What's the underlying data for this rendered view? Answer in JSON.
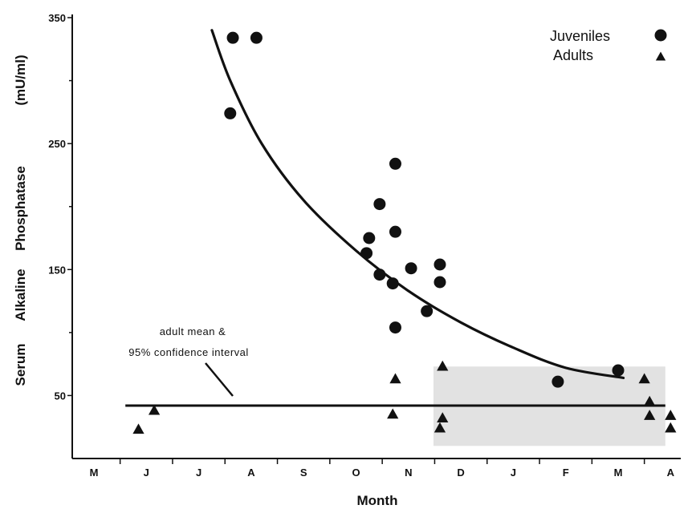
{
  "chart_data": {
    "type": "scatter",
    "xlabel": "Month",
    "ylabel": "Serum Alkaline Phosphatase (mU/ml)",
    "ylabel_parts": [
      "Serum",
      "Alkaline",
      "Phosphatase",
      "(mU/ml)"
    ],
    "ylim": [
      0,
      350
    ],
    "yticks": [
      50,
      150,
      250,
      350
    ],
    "xlim": [
      -0.5,
      11.5
    ],
    "categories": [
      "M",
      "J",
      "J",
      "A",
      "S",
      "O",
      "N",
      "D",
      "J",
      "F",
      "M",
      "A"
    ],
    "legend_position": "top-right",
    "series": [
      {
        "name": "Juveniles",
        "marker": "circle",
        "points": [
          {
            "x": 2.65,
            "y": 334
          },
          {
            "x": 3.1,
            "y": 334
          },
          {
            "x": 2.6,
            "y": 274
          },
          {
            "x": 5.75,
            "y": 234
          },
          {
            "x": 5.45,
            "y": 202
          },
          {
            "x": 5.75,
            "y": 180
          },
          {
            "x": 5.25,
            "y": 175
          },
          {
            "x": 5.2,
            "y": 163
          },
          {
            "x": 6.6,
            "y": 154
          },
          {
            "x": 6.05,
            "y": 151
          },
          {
            "x": 5.45,
            "y": 146
          },
          {
            "x": 6.6,
            "y": 140
          },
          {
            "x": 5.7,
            "y": 139
          },
          {
            "x": 6.35,
            "y": 117
          },
          {
            "x": 5.75,
            "y": 104
          },
          {
            "x": 8.85,
            "y": 61
          },
          {
            "x": 10.0,
            "y": 70
          }
        ]
      },
      {
        "name": "Adults",
        "marker": "triangle",
        "points": [
          {
            "x": 0.85,
            "y": 23
          },
          {
            "x": 1.15,
            "y": 38
          },
          {
            "x": 5.75,
            "y": 63
          },
          {
            "x": 5.7,
            "y": 35
          },
          {
            "x": 6.65,
            "y": 73
          },
          {
            "x": 6.65,
            "y": 32
          },
          {
            "x": 6.6,
            "y": 24
          },
          {
            "x": 10.5,
            "y": 63
          },
          {
            "x": 10.6,
            "y": 45
          },
          {
            "x": 10.6,
            "y": 34
          },
          {
            "x": 11.0,
            "y": 34
          },
          {
            "x": 11.0,
            "y": 24
          }
        ]
      }
    ],
    "fit_curve": {
      "points": [
        {
          "x": 2.25,
          "y": 340
        },
        {
          "x": 2.6,
          "y": 300
        },
        {
          "x": 3.2,
          "y": 250
        },
        {
          "x": 4.0,
          "y": 205
        },
        {
          "x": 5.0,
          "y": 165
        },
        {
          "x": 6.0,
          "y": 133
        },
        {
          "x": 7.0,
          "y": 108
        },
        {
          "x": 8.0,
          "y": 88
        },
        {
          "x": 9.0,
          "y": 72
        },
        {
          "x": 10.1,
          "y": 64
        }
      ]
    },
    "adult_mean": {
      "value": 42,
      "x_range": [
        0.6,
        10.9
      ],
      "ci_band": {
        "low": 10,
        "high": 73,
        "x_range": [
          6.6,
          10.9
        ]
      },
      "annotation": [
        "adult mean &",
        "95% confidence interval"
      ]
    }
  },
  "colors": {
    "ink": "#111111",
    "band": "#d8d8d8"
  }
}
